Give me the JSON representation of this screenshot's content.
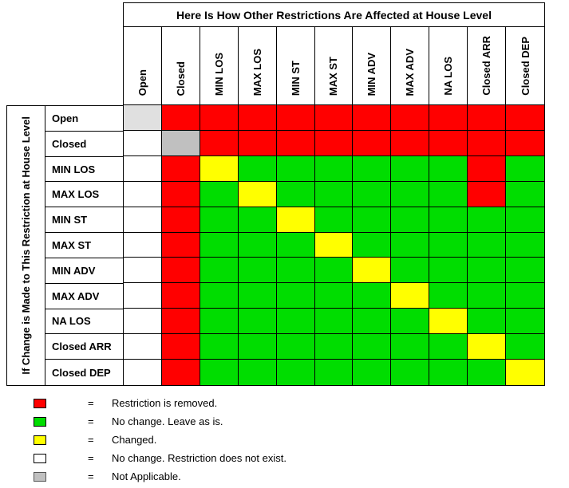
{
  "colors": {
    "removed": "#FF0000",
    "no_change": "#00DD00",
    "changed": "#FFFF00",
    "not_exist": "#FFFFFF",
    "not_applicable": "#C0C0C0",
    "not_applicable_light": "#E0E0E0"
  },
  "chart_data": {
    "type": "heatmap",
    "title": "Here Is How Other Restrictions Are Affected at House Level",
    "y_axis_label": "If Change is Made to This Restriction at House Level",
    "x_categories": [
      "Open",
      "Closed",
      "MIN LOS",
      "MAX LOS",
      "MIN ST",
      "MAX ST",
      "MIN ADV",
      "MAX ADV",
      "NA LOS",
      "Closed ARR",
      "Closed DEP"
    ],
    "y_categories": [
      "Open",
      "Closed",
      "MIN LOS",
      "MAX LOS",
      "MIN ST",
      "MAX ST",
      "MIN ADV",
      "MAX ADV",
      "NA LOS",
      "Closed ARR",
      "Closed DEP"
    ],
    "values": [
      [
        "not_applicable_light",
        "removed",
        "removed",
        "removed",
        "removed",
        "removed",
        "removed",
        "removed",
        "removed",
        "removed",
        "removed"
      ],
      [
        "not_exist",
        "not_applicable",
        "removed",
        "removed",
        "removed",
        "removed",
        "removed",
        "removed",
        "removed",
        "removed",
        "removed"
      ],
      [
        "not_exist",
        "removed",
        "changed",
        "no_change",
        "no_change",
        "no_change",
        "no_change",
        "no_change",
        "no_change",
        "removed",
        "no_change"
      ],
      [
        "not_exist",
        "removed",
        "no_change",
        "changed",
        "no_change",
        "no_change",
        "no_change",
        "no_change",
        "no_change",
        "removed",
        "no_change"
      ],
      [
        "not_exist",
        "removed",
        "no_change",
        "no_change",
        "changed",
        "no_change",
        "no_change",
        "no_change",
        "no_change",
        "no_change",
        "no_change"
      ],
      [
        "not_exist",
        "removed",
        "no_change",
        "no_change",
        "no_change",
        "changed",
        "no_change",
        "no_change",
        "no_change",
        "no_change",
        "no_change"
      ],
      [
        "not_exist",
        "removed",
        "no_change",
        "no_change",
        "no_change",
        "no_change",
        "changed",
        "no_change",
        "no_change",
        "no_change",
        "no_change"
      ],
      [
        "not_exist",
        "removed",
        "no_change",
        "no_change",
        "no_change",
        "no_change",
        "no_change",
        "changed",
        "no_change",
        "no_change",
        "no_change"
      ],
      [
        "not_exist",
        "removed",
        "no_change",
        "no_change",
        "no_change",
        "no_change",
        "no_change",
        "no_change",
        "changed",
        "no_change",
        "no_change"
      ],
      [
        "not_exist",
        "removed",
        "no_change",
        "no_change",
        "no_change",
        "no_change",
        "no_change",
        "no_change",
        "no_change",
        "changed",
        "no_change"
      ],
      [
        "not_exist",
        "removed",
        "no_change",
        "no_change",
        "no_change",
        "no_change",
        "no_change",
        "no_change",
        "no_change",
        "no_change",
        "changed"
      ]
    ],
    "legend_position": "bottom-left",
    "grid": true
  },
  "legend": {
    "equals": "=",
    "items": [
      {
        "color_key": "removed",
        "label": "Restriction is removed."
      },
      {
        "color_key": "no_change",
        "label": "No change. Leave as is."
      },
      {
        "color_key": "changed",
        "label": "Changed."
      },
      {
        "color_key": "not_exist",
        "label": "No change. Restriction does not exist."
      },
      {
        "color_key": "not_applicable",
        "label": "Not Applicable."
      }
    ]
  }
}
